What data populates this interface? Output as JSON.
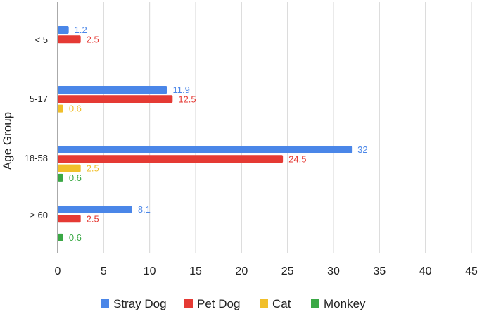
{
  "chart_data": {
    "type": "bar",
    "orientation": "horizontal",
    "title": "",
    "xlabel": "",
    "ylabel": "Age Group",
    "xlim": [
      0,
      45
    ],
    "xticks": [
      0,
      5,
      10,
      15,
      20,
      25,
      30,
      35,
      40,
      45
    ],
    "grid": true,
    "legend_position": "bottom",
    "categories": [
      "< 5",
      "5-17",
      "18-58",
      "≥ 60"
    ],
    "series": [
      {
        "name": "Stray Dog",
        "color": "#4a86e8",
        "values": [
          1.2,
          11.9,
          32,
          8.1
        ]
      },
      {
        "name": "Pet Dog",
        "color": "#e53a34",
        "values": [
          2.5,
          12.5,
          24.5,
          2.5
        ]
      },
      {
        "name": "Cat",
        "color": "#f1bf2a",
        "values": [
          null,
          0.6,
          2.5,
          null
        ]
      },
      {
        "name": "Monkey",
        "color": "#3aa845",
        "values": [
          null,
          null,
          0.6,
          0.6
        ]
      }
    ]
  }
}
